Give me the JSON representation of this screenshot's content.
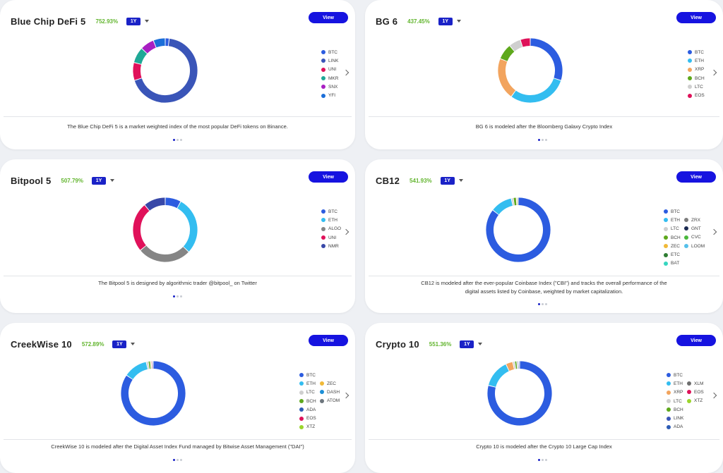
{
  "colors": {
    "btc": "#2c5ce0",
    "eth": "#33bdf0",
    "link": "#3a55b8",
    "uni": "#e0115a",
    "mkr": "#1fa896",
    "snx": "#a81fc2",
    "yfi": "#1b6ed8",
    "xrp": "#f2a45e",
    "bch": "#5ea81c",
    "ltc": "#cfcfcf",
    "eos": "#de1159",
    "algo": "#858585",
    "nmr": "#3848a8",
    "zec": "#f0b938",
    "etc": "#2e7d32",
    "bat": "#36d6c0",
    "zrx": "#7d7d7d",
    "gnt": "#1c2b52",
    "cvc": "#4ab83c",
    "loom": "#55c0ea",
    "ada": "#2d5cb5",
    "dash": "#1c8fd6",
    "atom": "#6d757d",
    "xtz": "#9bd52c",
    "xlm": "#6e6e6e",
    "pct_green": "#62b52e",
    "button_blue": "#1613e0"
  },
  "cards": [
    {
      "title": "Blue Chip DeFi 5",
      "pct": "752.93%",
      "period": "1Y",
      "view": "View",
      "description": "The Blue Chip DeFi 5 is a market weighted index of the most popular DeFi tokens on Binance.",
      "slices": [
        {
          "key": "BTC",
          "value": 0.02,
          "color": "#2c5ce0"
        },
        {
          "key": "LINK",
          "value": 0.68,
          "color": "#3a55b8"
        },
        {
          "key": "UNI",
          "value": 0.09,
          "color": "#e0115a"
        },
        {
          "key": "MKR",
          "value": 0.08,
          "color": "#1fa896"
        },
        {
          "key": "SNX",
          "value": 0.07,
          "color": "#a81fc2"
        },
        {
          "key": "YFI",
          "value": 0.06,
          "color": "#1b6ed8"
        }
      ],
      "legend": [
        [
          "BTC",
          "LINK",
          "UNI",
          "MKR",
          "SNX",
          "YFI"
        ]
      ]
    },
    {
      "title": "BG 6",
      "pct": "437.45%",
      "period": "1Y",
      "view": "View",
      "description": "BG 6 is modeled after the Bloomberg Galaxy Crypto Index",
      "slices": [
        {
          "key": "BTC",
          "value": 0.3,
          "color": "#2c5ce0"
        },
        {
          "key": "ETH",
          "value": 0.3,
          "color": "#33bdf0"
        },
        {
          "key": "XRP",
          "value": 0.21,
          "color": "#f2a45e"
        },
        {
          "key": "BCH",
          "value": 0.08,
          "color": "#5ea81c"
        },
        {
          "key": "LTC",
          "value": 0.06,
          "color": "#cfcfcf"
        },
        {
          "key": "EOS",
          "value": 0.05,
          "color": "#de1159"
        }
      ],
      "legend": [
        [
          "BTC",
          "ETH",
          "XRP",
          "BCH",
          "LTC",
          "EOS"
        ]
      ]
    },
    {
      "title": "Bitpool 5",
      "pct": "507.79%",
      "period": "1Y",
      "view": "View",
      "description": "The Bitpool 5 is designed by algorithmic trader @bitpool_ on Twitter",
      "slices": [
        {
          "key": "BTC",
          "value": 0.08,
          "color": "#2c5ce0"
        },
        {
          "key": "ETH",
          "value": 0.29,
          "color": "#33bdf0"
        },
        {
          "key": "ALGO",
          "value": 0.27,
          "color": "#858585"
        },
        {
          "key": "UNI",
          "value": 0.25,
          "color": "#e0115a"
        },
        {
          "key": "NMR",
          "value": 0.11,
          "color": "#3848a8"
        }
      ],
      "legend": [
        [
          "BTC",
          "ETH",
          "ALGO",
          "UNI",
          "NMR"
        ]
      ]
    },
    {
      "title": "CB12",
      "pct": "541.93%",
      "period": "1Y",
      "view": "View",
      "description": "CB12 is modeled after the ever-popular Coinbase Index (\"CBI\") and tracks the overall performance of the digital assets listed by Coinbase, weighted by market capitalization.",
      "slices": [
        {
          "key": "BTC",
          "value": 0.855,
          "color": "#2c5ce0"
        },
        {
          "key": "ETH",
          "value": 0.11,
          "color": "#33bdf0"
        },
        {
          "key": "LTC",
          "value": 0.01,
          "color": "#cfcfcf"
        },
        {
          "key": "BCH",
          "value": 0.015,
          "color": "#5ea81c"
        },
        {
          "key": "ZEC",
          "value": 0.005,
          "color": "#f0b938"
        },
        {
          "key": "ETC",
          "value": 0.005,
          "color": "#2e7d32"
        }
      ],
      "legend": [
        [
          "BTC",
          "ETH",
          "LTC",
          "BCH",
          "ZEC",
          "ETC",
          "BAT"
        ],
        [
          "ZRX",
          "GNT",
          "CVC",
          "LOOM"
        ]
      ]
    },
    {
      "title": "CreekWise 10",
      "pct": "572.89%",
      "period": "1Y",
      "view": "View",
      "description": "CreekWise 10 is modeled after the Digital Asset Index Fund managed by Bitwise Asset Management (\"DAI\")",
      "slices": [
        {
          "key": "BTC",
          "value": 0.845,
          "color": "#2c5ce0"
        },
        {
          "key": "ETH",
          "value": 0.12,
          "color": "#33bdf0"
        },
        {
          "key": "LTC",
          "value": 0.01,
          "color": "#cfcfcf"
        },
        {
          "key": "BCH",
          "value": 0.01,
          "color": "#5ea81c"
        },
        {
          "key": "XTZ",
          "value": 0.005,
          "color": "#9bd52c"
        },
        {
          "key": "EOS",
          "value": 0.005,
          "color": "#de1159"
        },
        {
          "key": "ADA",
          "value": 0.005,
          "color": "#2d5cb5"
        }
      ],
      "legend": [
        [
          "BTC",
          "ETH",
          "LTC",
          "BCH",
          "ADA",
          "EOS",
          "XTZ"
        ],
        [
          "ZEC",
          "DASH",
          "ATOM"
        ]
      ]
    },
    {
      "title": "Crypto 10",
      "pct": "551.36%",
      "period": "1Y",
      "view": "View",
      "description": "Crypto 10 is modeled after the Crypto 10 Large Cap Index",
      "slices": [
        {
          "key": "BTC",
          "value": 0.79,
          "color": "#2c5ce0"
        },
        {
          "key": "ETH",
          "value": 0.14,
          "color": "#33bdf0"
        },
        {
          "key": "XRP",
          "value": 0.035,
          "color": "#f2a45e"
        },
        {
          "key": "LTC",
          "value": 0.01,
          "color": "#cfcfcf"
        },
        {
          "key": "BCH",
          "value": 0.01,
          "color": "#5ea81c"
        },
        {
          "key": "XLM",
          "value": 0.005,
          "color": "#6e6e6e"
        },
        {
          "key": "LINK",
          "value": 0.005,
          "color": "#3a55b8"
        },
        {
          "key": "ADA",
          "value": 0.005,
          "color": "#2d5cb5"
        }
      ],
      "legend": [
        [
          "BTC",
          "ETH",
          "XRP",
          "LTC",
          "BCH",
          "LINK",
          "ADA"
        ],
        [
          "XLM",
          "EOS",
          "XTZ"
        ]
      ]
    }
  ]
}
